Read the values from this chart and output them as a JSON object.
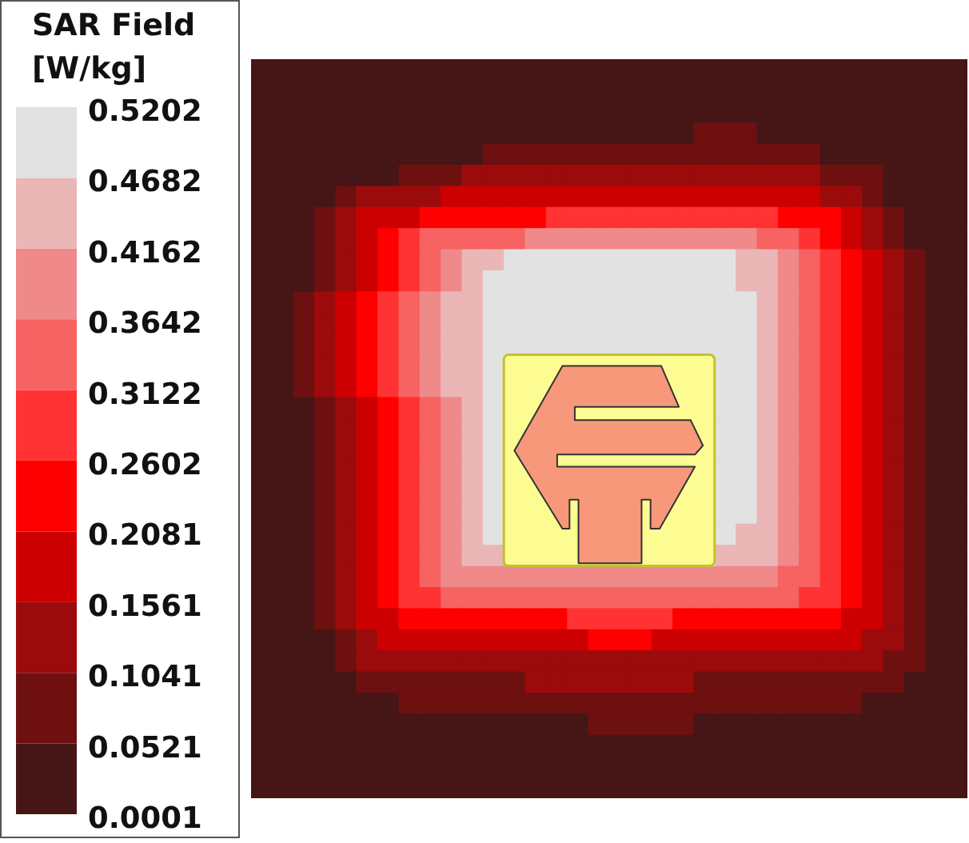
{
  "chart_data": {
    "type": "heatmap",
    "clabel": "SAR Field [W/kg]",
    "tick_labels": false,
    "categories": [
      null,
      null,
      null,
      null,
      null,
      null,
      null,
      null,
      null,
      null,
      null,
      null,
      null,
      null,
      null,
      null,
      null,
      null,
      null,
      null,
      null,
      null,
      null,
      null,
      null,
      null,
      null,
      null,
      null,
      null,
      null,
      null,
      null,
      null
    ],
    "y_categories": [
      null,
      null,
      null,
      null,
      null,
      null,
      null,
      null,
      null,
      null,
      null,
      null,
      null,
      null,
      null,
      null,
      null,
      null,
      null,
      null,
      null,
      null,
      null,
      null,
      null,
      null,
      null,
      null,
      null,
      null,
      null,
      null,
      null,
      null,
      null
    ],
    "clim": [
      0.0001,
      0.5202
    ],
    "cticks": [
      0.0001,
      0.0521,
      0.1041,
      0.1561,
      0.2081,
      0.2602,
      0.3122,
      0.3642,
      0.4162,
      0.4682,
      0.5202
    ],
    "colors": [
      "#461616",
      "#6e1010",
      "#9c0b0b",
      "#cc0000",
      "#ff0000",
      "#ff3333",
      "#f76262",
      "#f08a8a",
      "#ebb6b6",
      "#e2e2e2"
    ],
    "cells": [
      [
        0.03,
        0.03,
        0.03,
        0.03,
        0.03,
        0.03,
        0.03,
        0.03,
        0.03,
        0.03,
        0.03,
        0.03,
        0.03,
        0.03,
        0.03,
        0.03,
        0.03,
        0.03,
        0.03,
        0.03,
        0.03,
        0.03,
        0.03,
        0.03,
        0.03,
        0.03,
        0.03,
        0.03,
        0.03,
        0.03,
        0.03,
        0.03,
        0.03,
        0.03
      ],
      [
        0.03,
        0.03,
        0.03,
        0.03,
        0.03,
        0.03,
        0.03,
        0.03,
        0.03,
        0.03,
        0.03,
        0.03,
        0.03,
        0.03,
        0.03,
        0.03,
        0.03,
        0.03,
        0.03,
        0.03,
        0.03,
        0.03,
        0.03,
        0.03,
        0.03,
        0.03,
        0.03,
        0.03,
        0.03,
        0.03,
        0.03,
        0.03,
        0.03,
        0.03
      ],
      [
        0.03,
        0.03,
        0.03,
        0.03,
        0.03,
        0.03,
        0.03,
        0.03,
        0.03,
        0.03,
        0.03,
        0.03,
        0.03,
        0.03,
        0.03,
        0.03,
        0.03,
        0.03,
        0.03,
        0.03,
        0.03,
        0.03,
        0.03,
        0.03,
        0.03,
        0.03,
        0.03,
        0.03,
        0.03,
        0.03,
        0.03,
        0.03,
        0.03,
        0.03
      ],
      [
        0.03,
        0.03,
        0.03,
        0.03,
        0.03,
        0.03,
        0.03,
        0.03,
        0.03,
        0.03,
        0.03,
        0.03,
        0.03,
        0.03,
        0.03,
        0.03,
        0.03,
        0.03,
        0.03,
        0.03,
        0.03,
        0.08,
        0.08,
        0.08,
        0.03,
        0.03,
        0.03,
        0.03,
        0.03,
        0.03,
        0.03,
        0.03,
        0.03,
        0.03
      ],
      [
        0.03,
        0.03,
        0.03,
        0.03,
        0.03,
        0.03,
        0.03,
        0.03,
        0.03,
        0.03,
        0.03,
        0.08,
        0.08,
        0.08,
        0.08,
        0.08,
        0.08,
        0.08,
        0.08,
        0.08,
        0.08,
        0.08,
        0.08,
        0.08,
        0.08,
        0.08,
        0.08,
        0.03,
        0.03,
        0.03,
        0.03,
        0.03,
        0.03,
        0.03
      ],
      [
        0.03,
        0.03,
        0.03,
        0.03,
        0.03,
        0.03,
        0.03,
        0.08,
        0.08,
        0.08,
        0.13,
        0.13,
        0.13,
        0.13,
        0.13,
        0.13,
        0.13,
        0.13,
        0.13,
        0.13,
        0.13,
        0.13,
        0.13,
        0.13,
        0.13,
        0.13,
        0.13,
        0.08,
        0.08,
        0.08,
        0.03,
        0.03,
        0.03,
        0.03
      ],
      [
        0.03,
        0.03,
        0.03,
        0.03,
        0.08,
        0.13,
        0.13,
        0.13,
        0.13,
        0.18,
        0.18,
        0.18,
        0.18,
        0.18,
        0.18,
        0.18,
        0.18,
        0.18,
        0.18,
        0.18,
        0.18,
        0.18,
        0.18,
        0.18,
        0.18,
        0.18,
        0.18,
        0.13,
        0.13,
        0.08,
        0.03,
        0.03,
        0.03,
        0.03
      ],
      [
        0.03,
        0.03,
        0.03,
        0.08,
        0.13,
        0.18,
        0.18,
        0.18,
        0.23,
        0.23,
        0.23,
        0.23,
        0.23,
        0.23,
        0.29,
        0.29,
        0.29,
        0.29,
        0.29,
        0.29,
        0.29,
        0.29,
        0.29,
        0.29,
        0.29,
        0.23,
        0.23,
        0.23,
        0.18,
        0.13,
        0.08,
        0.03,
        0.03,
        0.03
      ],
      [
        0.03,
        0.03,
        0.03,
        0.08,
        0.13,
        0.18,
        0.23,
        0.29,
        0.34,
        0.34,
        0.34,
        0.34,
        0.34,
        0.39,
        0.39,
        0.39,
        0.39,
        0.39,
        0.39,
        0.39,
        0.39,
        0.39,
        0.39,
        0.39,
        0.34,
        0.34,
        0.29,
        0.23,
        0.18,
        0.13,
        0.08,
        0.03,
        0.03,
        0.03
      ],
      [
        0.03,
        0.03,
        0.03,
        0.08,
        0.13,
        0.18,
        0.23,
        0.29,
        0.34,
        0.39,
        0.44,
        0.44,
        0.49,
        0.49,
        0.49,
        0.49,
        0.49,
        0.49,
        0.49,
        0.49,
        0.49,
        0.49,
        0.49,
        0.44,
        0.44,
        0.39,
        0.34,
        0.29,
        0.23,
        0.18,
        0.13,
        0.08,
        0.03,
        0.03
      ],
      [
        0.03,
        0.03,
        0.03,
        0.08,
        0.13,
        0.18,
        0.23,
        0.29,
        0.34,
        0.39,
        0.44,
        0.49,
        0.49,
        0.49,
        0.49,
        0.49,
        0.49,
        0.49,
        0.49,
        0.49,
        0.49,
        0.49,
        0.49,
        0.44,
        0.44,
        0.39,
        0.34,
        0.29,
        0.23,
        0.18,
        0.13,
        0.08,
        0.03,
        0.03
      ],
      [
        0.03,
        0.03,
        0.08,
        0.13,
        0.18,
        0.23,
        0.29,
        0.34,
        0.39,
        0.44,
        0.44,
        0.49,
        0.49,
        0.49,
        0.49,
        0.49,
        0.49,
        0.49,
        0.49,
        0.49,
        0.49,
        0.49,
        0.49,
        0.49,
        0.44,
        0.39,
        0.34,
        0.29,
        0.23,
        0.18,
        0.13,
        0.08,
        0.03,
        0.03
      ],
      [
        0.03,
        0.03,
        0.08,
        0.13,
        0.18,
        0.23,
        0.29,
        0.34,
        0.39,
        0.44,
        0.44,
        0.49,
        0.49,
        0.49,
        0.49,
        0.49,
        0.49,
        0.49,
        0.49,
        0.49,
        0.49,
        0.49,
        0.49,
        0.49,
        0.44,
        0.39,
        0.34,
        0.29,
        0.23,
        0.18,
        0.13,
        0.08,
        0.03,
        0.03
      ],
      [
        0.03,
        0.03,
        0.08,
        0.13,
        0.18,
        0.23,
        0.29,
        0.34,
        0.39,
        0.44,
        0.44,
        0.49,
        0.49,
        0.49,
        0.49,
        0.49,
        0.49,
        0.49,
        0.49,
        0.49,
        0.49,
        0.49,
        0.49,
        0.49,
        0.44,
        0.39,
        0.34,
        0.29,
        0.23,
        0.18,
        0.13,
        0.08,
        0.03,
        0.03
      ],
      [
        0.03,
        0.03,
        0.08,
        0.13,
        0.18,
        0.23,
        0.29,
        0.34,
        0.39,
        0.44,
        0.44,
        0.49,
        null,
        null,
        null,
        null,
        null,
        null,
        null,
        null,
        null,
        null,
        0.49,
        0.49,
        0.44,
        0.39,
        0.34,
        0.29,
        0.23,
        0.18,
        0.13,
        0.08,
        0.03,
        0.03
      ],
      [
        0.03,
        0.03,
        0.08,
        0.13,
        0.18,
        0.23,
        0.29,
        0.34,
        0.39,
        0.44,
        0.44,
        0.49,
        null,
        null,
        null,
        null,
        null,
        null,
        null,
        null,
        null,
        null,
        0.49,
        0.49,
        0.44,
        0.39,
        0.34,
        0.29,
        0.23,
        0.18,
        0.13,
        0.08,
        0.03,
        0.03
      ],
      [
        0.03,
        0.03,
        0.03,
        0.08,
        0.13,
        0.18,
        0.23,
        0.29,
        0.34,
        0.39,
        0.44,
        0.49,
        null,
        null,
        null,
        null,
        null,
        null,
        null,
        null,
        null,
        null,
        0.49,
        0.49,
        0.44,
        0.39,
        0.34,
        0.29,
        0.23,
        0.18,
        0.13,
        0.08,
        0.03,
        0.03
      ],
      [
        0.03,
        0.03,
        0.03,
        0.08,
        0.13,
        0.18,
        0.23,
        0.29,
        0.34,
        0.39,
        0.44,
        0.49,
        null,
        null,
        null,
        null,
        null,
        null,
        null,
        null,
        null,
        null,
        0.49,
        0.49,
        0.44,
        0.39,
        0.34,
        0.29,
        0.23,
        0.18,
        0.13,
        0.08,
        0.03,
        0.03
      ],
      [
        0.03,
        0.03,
        0.03,
        0.08,
        0.13,
        0.18,
        0.23,
        0.29,
        0.34,
        0.39,
        0.44,
        0.49,
        null,
        null,
        null,
        null,
        null,
        null,
        null,
        null,
        null,
        null,
        0.49,
        0.49,
        0.44,
        0.39,
        0.34,
        0.29,
        0.23,
        0.18,
        0.13,
        0.08,
        0.03,
        0.03
      ],
      [
        0.03,
        0.03,
        0.03,
        0.08,
        0.13,
        0.18,
        0.23,
        0.29,
        0.34,
        0.39,
        0.44,
        0.49,
        null,
        null,
        null,
        null,
        null,
        null,
        null,
        null,
        null,
        null,
        0.49,
        0.49,
        0.44,
        0.39,
        0.34,
        0.29,
        0.23,
        0.18,
        0.13,
        0.08,
        0.03,
        0.03
      ],
      [
        0.03,
        0.03,
        0.03,
        0.08,
        0.13,
        0.18,
        0.23,
        0.29,
        0.34,
        0.39,
        0.44,
        0.49,
        null,
        null,
        null,
        null,
        null,
        null,
        null,
        null,
        null,
        null,
        0.49,
        0.49,
        0.44,
        0.39,
        0.34,
        0.29,
        0.23,
        0.18,
        0.13,
        0.08,
        0.03,
        0.03
      ],
      [
        0.03,
        0.03,
        0.03,
        0.08,
        0.13,
        0.18,
        0.23,
        0.29,
        0.34,
        0.39,
        0.44,
        0.49,
        null,
        null,
        null,
        null,
        null,
        null,
        null,
        null,
        null,
        null,
        0.49,
        0.49,
        0.44,
        0.39,
        0.34,
        0.29,
        0.23,
        0.18,
        0.13,
        0.08,
        0.03,
        0.03
      ],
      [
        0.03,
        0.03,
        0.03,
        0.08,
        0.13,
        0.18,
        0.23,
        0.29,
        0.34,
        0.39,
        0.44,
        0.49,
        null,
        null,
        null,
        null,
        null,
        null,
        null,
        null,
        null,
        null,
        0.49,
        0.44,
        0.44,
        0.39,
        0.34,
        0.29,
        0.23,
        0.18,
        0.13,
        0.08,
        0.03,
        0.03
      ],
      [
        0.03,
        0.03,
        0.03,
        0.08,
        0.13,
        0.18,
        0.23,
        0.29,
        0.34,
        0.39,
        0.44,
        0.44,
        null,
        null,
        null,
        null,
        null,
        null,
        null,
        null,
        null,
        null,
        0.44,
        0.44,
        0.44,
        0.39,
        0.34,
        0.29,
        0.23,
        0.18,
        0.13,
        0.08,
        0.03,
        0.03
      ],
      [
        0.03,
        0.03,
        0.03,
        0.08,
        0.13,
        0.18,
        0.23,
        0.29,
        0.34,
        0.39,
        0.39,
        0.39,
        0.39,
        0.39,
        0.39,
        0.39,
        0.39,
        0.39,
        0.39,
        0.39,
        0.39,
        0.39,
        0.39,
        0.39,
        0.39,
        0.34,
        0.34,
        0.29,
        0.23,
        0.18,
        0.13,
        0.08,
        0.03,
        0.03
      ],
      [
        0.03,
        0.03,
        0.03,
        0.08,
        0.13,
        0.18,
        0.23,
        0.29,
        0.29,
        0.34,
        0.34,
        0.34,
        0.34,
        0.34,
        0.34,
        0.34,
        0.34,
        0.34,
        0.34,
        0.34,
        0.34,
        0.34,
        0.34,
        0.34,
        0.34,
        0.34,
        0.29,
        0.29,
        0.23,
        0.18,
        0.13,
        0.08,
        0.03,
        0.03
      ],
      [
        0.03,
        0.03,
        0.03,
        0.08,
        0.13,
        0.18,
        0.18,
        0.23,
        0.23,
        0.23,
        0.23,
        0.23,
        0.23,
        0.23,
        0.23,
        0.29,
        0.29,
        0.29,
        0.29,
        0.29,
        0.23,
        0.23,
        0.23,
        0.23,
        0.23,
        0.23,
        0.23,
        0.23,
        0.18,
        0.18,
        0.13,
        0.08,
        0.03,
        0.03
      ],
      [
        0.03,
        0.03,
        0.03,
        0.03,
        0.08,
        0.13,
        0.18,
        0.18,
        0.18,
        0.18,
        0.18,
        0.18,
        0.18,
        0.18,
        0.18,
        0.18,
        0.23,
        0.23,
        0.23,
        0.18,
        0.18,
        0.18,
        0.18,
        0.18,
        0.18,
        0.18,
        0.18,
        0.18,
        0.18,
        0.13,
        0.13,
        0.08,
        0.03,
        0.03
      ],
      [
        0.03,
        0.03,
        0.03,
        0.03,
        0.08,
        0.13,
        0.13,
        0.13,
        0.13,
        0.13,
        0.13,
        0.13,
        0.13,
        0.13,
        0.13,
        0.13,
        0.13,
        0.13,
        0.13,
        0.13,
        0.13,
        0.13,
        0.13,
        0.13,
        0.13,
        0.13,
        0.13,
        0.13,
        0.13,
        0.13,
        0.08,
        0.08,
        0.03,
        0.03
      ],
      [
        0.03,
        0.03,
        0.03,
        0.03,
        0.03,
        0.08,
        0.08,
        0.08,
        0.08,
        0.08,
        0.08,
        0.08,
        0.08,
        0.13,
        0.13,
        0.13,
        0.13,
        0.13,
        0.13,
        0.13,
        0.13,
        0.08,
        0.08,
        0.08,
        0.08,
        0.08,
        0.08,
        0.08,
        0.08,
        0.08,
        0.08,
        0.03,
        0.03,
        0.03
      ],
      [
        0.03,
        0.03,
        0.03,
        0.03,
        0.03,
        0.03,
        0.03,
        0.08,
        0.08,
        0.08,
        0.08,
        0.08,
        0.08,
        0.08,
        0.08,
        0.08,
        0.08,
        0.08,
        0.08,
        0.08,
        0.08,
        0.08,
        0.08,
        0.08,
        0.08,
        0.08,
        0.08,
        0.08,
        0.08,
        0.03,
        0.03,
        0.03,
        0.03,
        0.03
      ],
      [
        0.03,
        0.03,
        0.03,
        0.03,
        0.03,
        0.03,
        0.03,
        0.03,
        0.03,
        0.03,
        0.03,
        0.03,
        0.03,
        0.03,
        0.03,
        0.03,
        0.08,
        0.08,
        0.08,
        0.08,
        0.08,
        0.03,
        0.03,
        0.03,
        0.03,
        0.03,
        0.03,
        0.03,
        0.03,
        0.03,
        0.03,
        0.03,
        0.03,
        0.03
      ],
      [
        0.03,
        0.03,
        0.03,
        0.03,
        0.03,
        0.03,
        0.03,
        0.03,
        0.03,
        0.03,
        0.03,
        0.03,
        0.03,
        0.03,
        0.03,
        0.03,
        0.03,
        0.03,
        0.03,
        0.03,
        0.03,
        0.03,
        0.03,
        0.03,
        0.03,
        0.03,
        0.03,
        0.03,
        0.03,
        0.03,
        0.03,
        0.03,
        0.03,
        0.03
      ],
      [
        0.03,
        0.03,
        0.03,
        0.03,
        0.03,
        0.03,
        0.03,
        0.03,
        0.03,
        0.03,
        0.03,
        0.03,
        0.03,
        0.03,
        0.03,
        0.03,
        0.03,
        0.03,
        0.03,
        0.03,
        0.03,
        0.03,
        0.03,
        0.03,
        0.03,
        0.03,
        0.03,
        0.03,
        0.03,
        0.03,
        0.03,
        0.03,
        0.03,
        0.03
      ],
      [
        0.03,
        0.03,
        0.03,
        0.03,
        0.03,
        0.03,
        0.03,
        0.03,
        0.03,
        0.03,
        0.03,
        0.03,
        0.03,
        0.03,
        0.03,
        0.03,
        0.03,
        0.03,
        0.03,
        0.03,
        0.03,
        0.03,
        0.03,
        0.03,
        0.03,
        0.03,
        0.03,
        0.03,
        0.03,
        0.03,
        0.03,
        0.03,
        0.03,
        0.03
      ]
    ]
  }
}
